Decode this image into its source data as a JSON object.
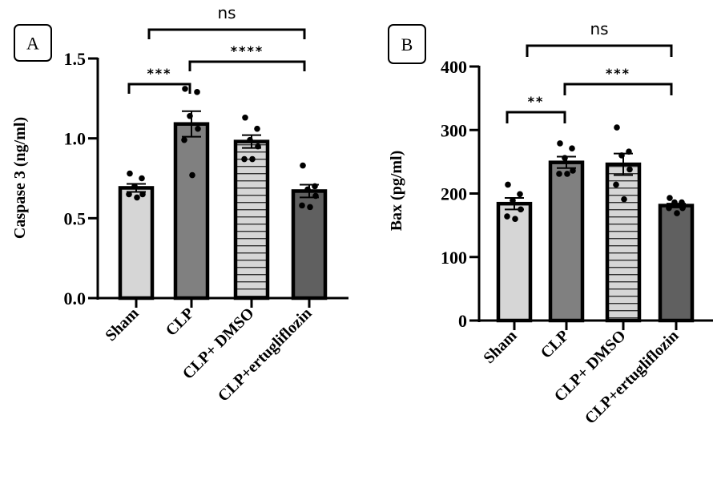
{
  "chart_data": [
    {
      "panel_label": "A",
      "type": "bar",
      "title": "",
      "xlabel": "",
      "ylabel": "Caspase 3 (ng/ml)",
      "ylim": [
        0,
        1.5
      ],
      "yticks": [
        0.0,
        0.5,
        1.0,
        1.5
      ],
      "ytick_labels": [
        "0.0",
        "0.5",
        "1.0",
        "1.5"
      ],
      "categories": [
        "Sham",
        "CLP",
        "CLP+ DMSO",
        "CLP+ertugliflozin"
      ],
      "values": [
        0.69,
        1.09,
        0.98,
        0.67
      ],
      "sem": [
        0.025,
        0.08,
        0.04,
        0.04
      ],
      "points": [
        [
          0.78,
          0.75,
          0.7,
          0.65,
          0.65,
          0.63
        ],
        [
          1.31,
          1.29,
          1.14,
          1.06,
          0.99,
          0.77
        ],
        [
          1.13,
          1.06,
          0.99,
          0.95,
          0.87,
          0.87
        ],
        [
          0.83,
          0.7,
          0.68,
          0.64,
          0.58,
          0.57
        ]
      ],
      "significance": [
        {
          "from": 0,
          "to": 1,
          "label": "***"
        },
        {
          "from": 1,
          "to": 3,
          "label": "****"
        },
        {
          "from": 0,
          "to": 3,
          "label": "ns"
        }
      ]
    },
    {
      "panel_label": "B",
      "type": "bar",
      "title": "",
      "xlabel": "",
      "ylabel": "Bax (pg/ml)",
      "ylim": [
        0,
        400
      ],
      "yticks": [
        0,
        100,
        200,
        300,
        400
      ],
      "ytick_labels": [
        "0",
        "100",
        "200",
        "300",
        "400"
      ],
      "categories": [
        "Sham",
        "CLP",
        "CLP+ DMSO",
        "CLP+ertugliflozin"
      ],
      "values": [
        184,
        249,
        246,
        181
      ],
      "sem": [
        9,
        9,
        17,
        3
      ],
      "points": [
        [
          214,
          199,
          189,
          175,
          164,
          160
        ],
        [
          279,
          271,
          256,
          236,
          231,
          231
        ],
        [
          304,
          266,
          260,
          238,
          214,
          191
        ],
        [
          193,
          186,
          186,
          177,
          177,
          169
        ]
      ],
      "significance": [
        {
          "from": 0,
          "to": 1,
          "label": "**"
        },
        {
          "from": 1,
          "to": 3,
          "label": "***"
        },
        {
          "from": 0,
          "to": 3,
          "label": "ns"
        }
      ]
    }
  ],
  "bar_fills": [
    "#d6d6d6",
    "#808080",
    "#d6d6d6",
    "#606060"
  ],
  "bar_patterns": [
    "solid",
    "solid",
    "horizontal-stripes",
    "solid"
  ]
}
